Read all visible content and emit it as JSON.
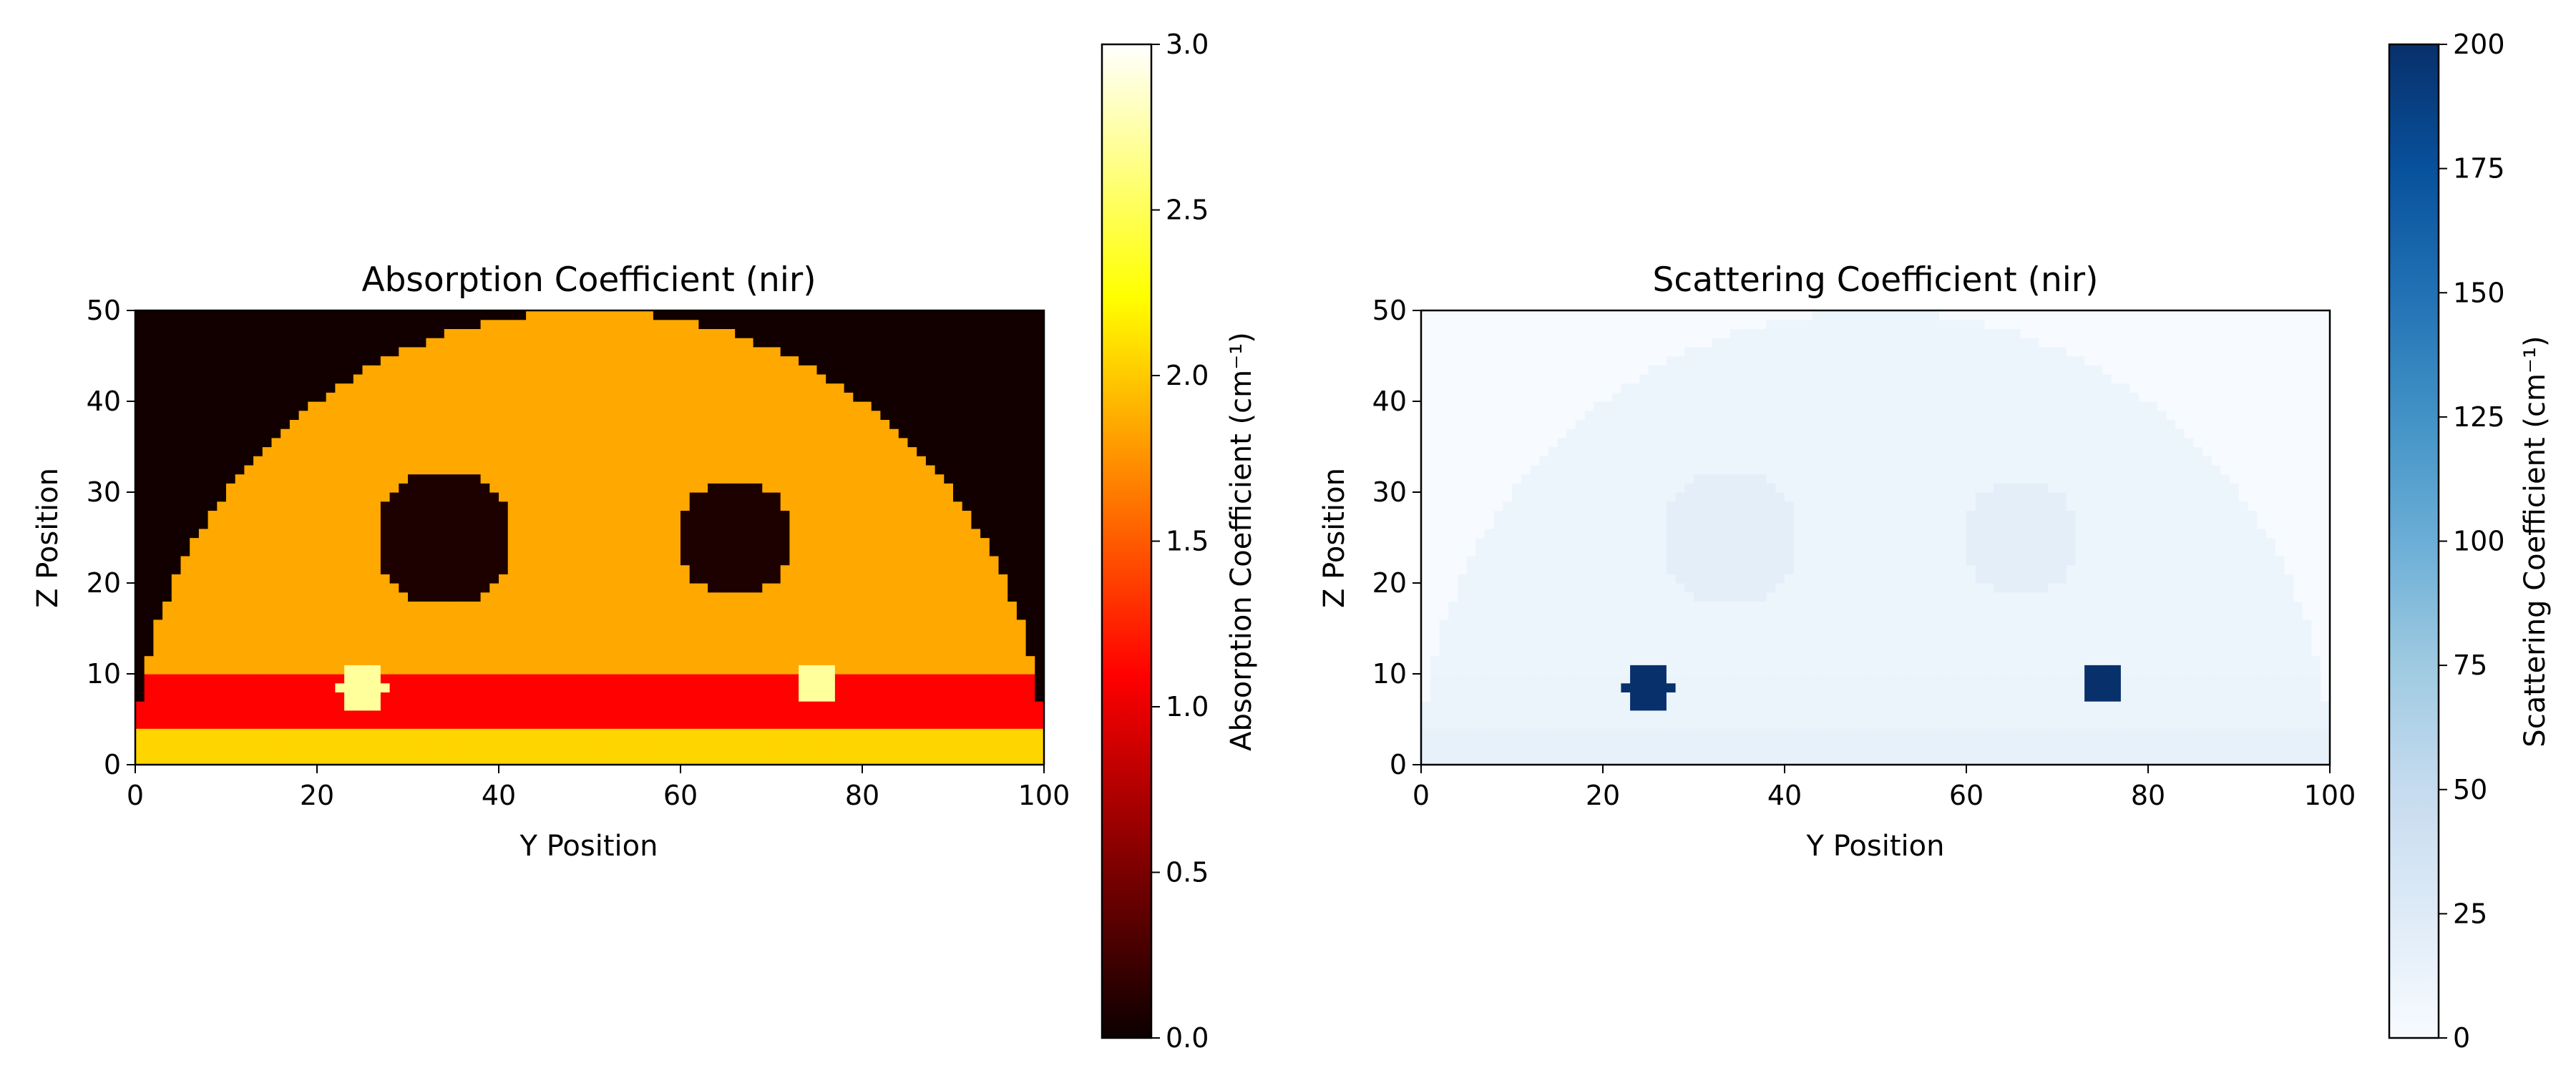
{
  "chart_data": [
    {
      "type": "heatmap",
      "title": "Absorption Coefficient (nir)",
      "xlabel": "Y Position",
      "ylabel": "Z Position",
      "xlim": [
        0,
        100
      ],
      "ylim": [
        0,
        50
      ],
      "xticks": [
        0,
        20,
        40,
        60,
        80,
        100
      ],
      "yticks": [
        0,
        10,
        20,
        30,
        40,
        50
      ],
      "colormap": "hot",
      "colorbar": {
        "label": "Absorption Coefficient (cm⁻¹)",
        "range": [
          0,
          3.0
        ],
        "ticks": [
          0.0,
          0.5,
          1.0,
          1.5,
          2.0,
          2.5,
          3.0
        ],
        "tick_labels": [
          "0.0",
          "0.5",
          "1.0",
          "1.5",
          "2.0",
          "2.5",
          "3.0"
        ]
      },
      "regions": [
        {
          "name": "background",
          "value": 0.03
        },
        {
          "name": "dome tissue",
          "value": 1.85
        },
        {
          "name": "band z 4-10",
          "value": 1.1
        },
        {
          "name": "band z 0-4",
          "value": 2.05
        },
        {
          "name": "circular inclusion 1",
          "center": [
            34,
            25
          ],
          "radius": 7.5,
          "value": 0.08
        },
        {
          "name": "circular inclusion 2",
          "center": [
            66,
            25
          ],
          "radius": 6.5,
          "value": 0.08
        },
        {
          "name": "small inclusion 1",
          "center": [
            25,
            8.5
          ],
          "radius": 2.5,
          "value": 2.7
        },
        {
          "name": "small inclusion 2",
          "center": [
            75,
            9
          ],
          "radius": 2.5,
          "value": 2.7
        }
      ]
    },
    {
      "type": "heatmap",
      "title": "Scattering Coefficient (nir)",
      "xlabel": "Y Position",
      "ylabel": "Z Position",
      "xlim": [
        0,
        100
      ],
      "ylim": [
        0,
        50
      ],
      "xticks": [
        0,
        20,
        40,
        60,
        80,
        100
      ],
      "yticks": [
        0,
        10,
        20,
        30,
        40,
        50
      ],
      "colormap": "Blues",
      "colorbar": {
        "label": "Scattering Coefficient (cm⁻¹)",
        "range": [
          0,
          200
        ],
        "ticks": [
          0,
          25,
          50,
          75,
          100,
          125,
          150,
          175,
          200
        ],
        "tick_labels": [
          "0",
          "25",
          "50",
          "75",
          "100",
          "125",
          "150",
          "175",
          "200"
        ]
      },
      "regions": [
        {
          "name": "background",
          "value": 0
        },
        {
          "name": "dome tissue",
          "value": 10
        },
        {
          "name": "band z 4-10",
          "value": 12
        },
        {
          "name": "band z 0-4",
          "value": 16
        },
        {
          "name": "circular inclusion 1",
          "center": [
            34,
            25
          ],
          "radius": 7.5,
          "value": 20
        },
        {
          "name": "circular inclusion 2",
          "center": [
            66,
            25
          ],
          "radius": 6.5,
          "value": 20
        },
        {
          "name": "small inclusion 1",
          "center": [
            25,
            8.5
          ],
          "radius": 2.5,
          "value": 200
        },
        {
          "name": "small inclusion 2",
          "center": [
            75,
            9
          ],
          "radius": 2.5,
          "value": 200
        }
      ]
    }
  ]
}
